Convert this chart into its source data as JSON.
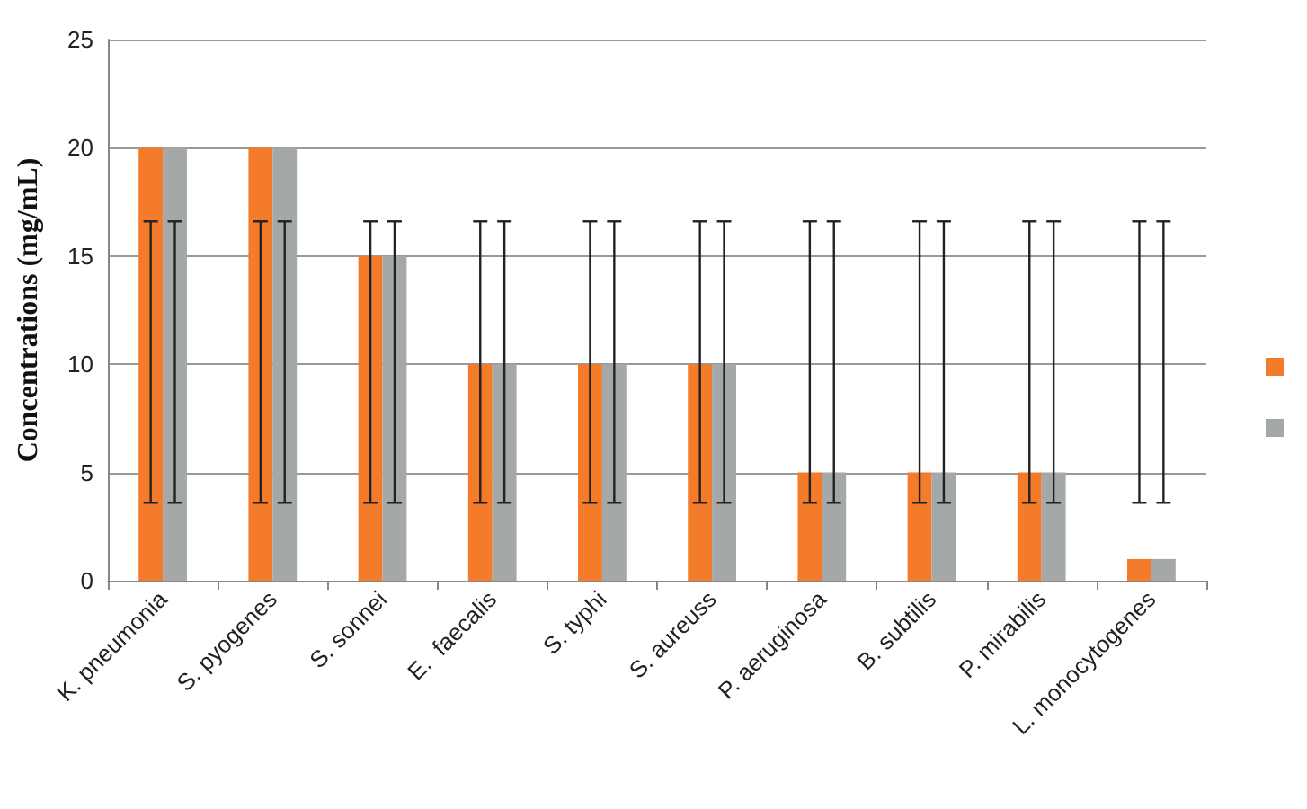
{
  "chart_data": {
    "type": "bar",
    "ylabel": "Concentrations (mg/mL)",
    "categories": [
      "K. pneumonia",
      "S. pyogenes",
      "S. sonnei",
      "E.  faecalis",
      "S. typhi",
      "S. aureuss",
      "P. aeruginosa",
      "B. subtilis",
      "P. mirabilis",
      "L. monocytogenes"
    ],
    "series": [
      {
        "color": "#f47b2a",
        "values": [
          20,
          20,
          15,
          10,
          10,
          10,
          5,
          5,
          5,
          1
        ],
        "errors": [
          [
            3.6,
            16.6
          ],
          [
            3.6,
            16.6
          ],
          [
            3.6,
            16.6
          ],
          [
            3.6,
            16.6
          ],
          [
            3.6,
            16.6
          ],
          [
            3.6,
            16.6
          ],
          [
            3.6,
            16.6
          ],
          [
            3.6,
            16.6
          ],
          [
            3.6,
            16.6
          ],
          [
            3.6,
            16.6
          ]
        ]
      },
      {
        "color": "#a5a8a8",
        "values": [
          20,
          20,
          15,
          10,
          10,
          10,
          5,
          5,
          5,
          1
        ],
        "errors": [
          [
            3.6,
            16.6
          ],
          [
            3.6,
            16.6
          ],
          [
            3.6,
            16.6
          ],
          [
            3.6,
            16.6
          ],
          [
            3.6,
            16.6
          ],
          [
            3.6,
            16.6
          ],
          [
            3.6,
            16.6
          ],
          [
            3.6,
            16.6
          ],
          [
            3.6,
            16.6
          ],
          [
            3.6,
            16.6
          ]
        ]
      }
    ],
    "ylim": [
      0,
      25
    ],
    "yticks": [
      0,
      5,
      10,
      15,
      20,
      25
    ],
    "grid": "y"
  }
}
